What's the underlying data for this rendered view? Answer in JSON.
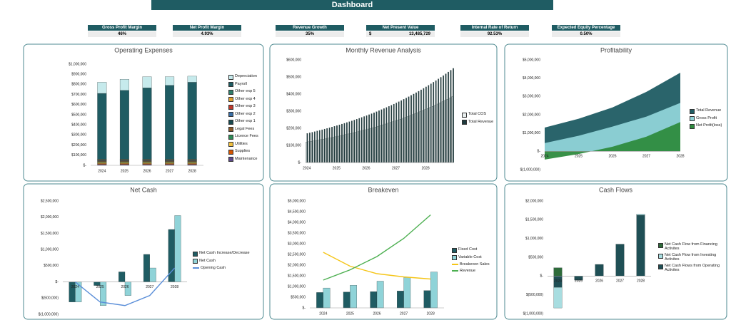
{
  "header": {
    "title": "Dashboard"
  },
  "kpis": [
    {
      "label": "Gross Profit Margin",
      "value": "46%"
    },
    {
      "label": "Net Profit Margin",
      "value": "4.93%"
    },
    {
      "label": "Revenue Growth",
      "value": "35%"
    },
    {
      "label": "Net Present Value",
      "prefix": "$",
      "value": "13,485,729"
    },
    {
      "label": "Internal Rate of Return",
      "value": "92.53%"
    },
    {
      "label": "Expected Equity Percentage",
      "value": "0.50%"
    }
  ],
  "chart_data": [
    {
      "type": "stacked_bar",
      "title": "Operating Expenses",
      "categories": [
        "2024",
        "2025",
        "2026",
        "2027",
        "2028"
      ],
      "ylim": [
        0,
        1000000
      ],
      "yticks": [
        {
          "value": 0,
          "label": "$-"
        },
        {
          "value": 100000,
          "label": "$100,000"
        },
        {
          "value": 200000,
          "label": "$200,000"
        },
        {
          "value": 300000,
          "label": "$300,000"
        },
        {
          "value": 400000,
          "label": "$400,000"
        },
        {
          "value": 500000,
          "label": "$500,000"
        },
        {
          "value": 600000,
          "label": "$600,000"
        },
        {
          "value": 700000,
          "label": "$700,000"
        },
        {
          "value": 800000,
          "label": "$800,000"
        },
        {
          "value": 900000,
          "label": "$900,000"
        },
        {
          "value": 1000000,
          "label": "$1,000,000"
        }
      ],
      "series": [
        {
          "name": "Depreciation",
          "color": "#c6eaec",
          "values": [
            110000,
            110000,
            110000,
            85000,
            60000
          ]
        },
        {
          "name": "Payroll",
          "color": "#1f5c63",
          "values": [
            650000,
            680000,
            705000,
            730000,
            760000
          ]
        },
        {
          "name": "Other exp 5",
          "color": "#2e7d6b",
          "values": [
            4000,
            4000,
            4000,
            4000,
            4000
          ]
        },
        {
          "name": "Other exp 4",
          "color": "#e0a030",
          "values": [
            4000,
            4000,
            4000,
            4000,
            4000
          ]
        },
        {
          "name": "Other exp 3",
          "color": "#c0392b",
          "values": [
            4000,
            4000,
            4000,
            4000,
            4000
          ]
        },
        {
          "name": "Other exp 2",
          "color": "#3a6ea5",
          "values": [
            4000,
            4000,
            4000,
            4000,
            4000
          ]
        },
        {
          "name": "Other exp 1",
          "color": "#17494f",
          "values": [
            4000,
            4000,
            4000,
            4000,
            4000
          ]
        },
        {
          "name": "Legal Fees",
          "color": "#8a5a2b",
          "values": [
            8000,
            8000,
            8000,
            8000,
            8000
          ]
        },
        {
          "name": "Licence Fees",
          "color": "#2e8b57",
          "values": [
            5000,
            5000,
            5000,
            5000,
            5000
          ]
        },
        {
          "name": "Utilities",
          "color": "#f0c040",
          "values": [
            10000,
            10000,
            10000,
            10000,
            10000
          ]
        },
        {
          "name": "Supplies",
          "color": "#d35400",
          "values": [
            8000,
            8000,
            8000,
            8000,
            8000
          ]
        },
        {
          "name": "Maintenance",
          "color": "#5d4a8a",
          "values": [
            10000,
            10000,
            10000,
            10000,
            10000
          ]
        }
      ]
    },
    {
      "type": "bar",
      "title": "Monthly Revenue Analysis",
      "categories": [
        "2024",
        null,
        null,
        null,
        null,
        null,
        null,
        null,
        null,
        null,
        null,
        null,
        "2025",
        null,
        null,
        null,
        null,
        null,
        null,
        null,
        null,
        null,
        null,
        null,
        "2026",
        null,
        null,
        null,
        null,
        null,
        null,
        null,
        null,
        null,
        null,
        null,
        "2027",
        null,
        null,
        null,
        null,
        null,
        null,
        null,
        null,
        null,
        null,
        null,
        "2028",
        null,
        null,
        null,
        null,
        null,
        null,
        null,
        null,
        null,
        null,
        null
      ],
      "ylim": [
        0,
        600000
      ],
      "yticks": [
        {
          "value": 0,
          "label": "$-"
        },
        {
          "value": 100000,
          "label": "$100,000"
        },
        {
          "value": 200000,
          "label": "$200,000"
        },
        {
          "value": 300000,
          "label": "$300,000"
        },
        {
          "value": 400000,
          "label": "$400,000"
        },
        {
          "value": 500000,
          "label": "$500,000"
        },
        {
          "value": 600000,
          "label": "$600,000"
        }
      ],
      "series": [
        {
          "name": "Total COS",
          "color": "#e8eeee",
          "values": [
            119000,
            121400,
            123800,
            126400,
            128900,
            131500,
            134100,
            136900,
            139600,
            142400,
            145300,
            148200,
            151100,
            154200,
            157300,
            160400,
            163700,
            167000,
            170300,
            173700,
            177200,
            180800,
            184500,
            188200,
            191900,
            195800,
            199700,
            203800,
            207800,
            212000,
            216300,
            220600,
            225100,
            229600,
            234200,
            238900,
            243700,
            248600,
            253600,
            258700,
            263900,
            269200,
            274600,
            280100,
            285800,
            291600,
            297400,
            303400,
            309500,
            315700,
            322100,
            328500,
            335200,
            341900,
            348700,
            355700,
            363000,
            370200,
            377700,
            385300
          ]
        },
        {
          "name": "Total Revenue",
          "color": "#1f3b3e",
          "values": [
            170000,
            173400,
            176900,
            180500,
            184100,
            187800,
            191600,
            195500,
            199400,
            203400,
            207500,
            211700,
            215900,
            220300,
            224700,
            229200,
            233800,
            238500,
            243300,
            248200,
            253200,
            258300,
            263500,
            268800,
            274200,
            279700,
            285300,
            291100,
            296900,
            302900,
            309000,
            315200,
            321500,
            328000,
            334600,
            341300,
            348200,
            355200,
            362300,
            369600,
            377000,
            384600,
            392300,
            400200,
            408300,
            416500,
            424900,
            433400,
            442100,
            451000,
            460100,
            469300,
            478800,
            488400,
            498200,
            508200,
            518500,
            528900,
            539500,
            550400
          ]
        }
      ]
    },
    {
      "type": "area",
      "title": "Profitability",
      "categories": [
        "2024",
        "2025",
        "2026",
        "2027",
        "2028"
      ],
      "ylim": [
        -1000000,
        5000000
      ],
      "yticks": [
        {
          "value": -1000000,
          "label": "$(1,000,000)"
        },
        {
          "value": 0,
          "label": "$-"
        },
        {
          "value": 1000000,
          "label": "$1,000,000"
        },
        {
          "value": 2000000,
          "label": "$2,000,000"
        },
        {
          "value": 3000000,
          "label": "$3,000,000"
        },
        {
          "value": 4000000,
          "label": "$4,000,000"
        },
        {
          "value": 5000000,
          "label": "$5,000,000"
        }
      ],
      "series": [
        {
          "name": "Total Revenue",
          "color": "#1f5c63",
          "values": [
            1300000,
            1780000,
            2400000,
            3250000,
            4300000
          ]
        },
        {
          "name": "Gross Profit",
          "color": "#8fd3d8",
          "values": [
            450000,
            850000,
            1350000,
            1900000,
            2650000
          ]
        },
        {
          "name": "Net Profit(loss)",
          "color": "#2e8b3e",
          "values": [
            -450000,
            -150000,
            250000,
            800000,
            1600000
          ]
        }
      ]
    },
    {
      "type": "combo",
      "title": "Net Cash",
      "categories": [
        "2024",
        "2025",
        "2026",
        "2027",
        "2028"
      ],
      "ylim": [
        -1000000,
        2500000
      ],
      "yticks": [
        {
          "value": -1000000,
          "label": "$(1,000,000)"
        },
        {
          "value": -500000,
          "label": "$(500,000)"
        },
        {
          "value": 0,
          "label": "$-"
        },
        {
          "value": 500000,
          "label": "$500,000"
        },
        {
          "value": 1000000,
          "label": "$1,000,000"
        },
        {
          "value": 1500000,
          "label": "$1,500,000"
        },
        {
          "value": 2000000,
          "label": "$2,000,000"
        },
        {
          "value": 2500000,
          "label": "$2,500,000"
        }
      ],
      "series": [
        {
          "name": "Net Cash Increase/Decrease",
          "kind": "bar",
          "color": "#1f5c63",
          "values": [
            -620000,
            -110000,
            310000,
            850000,
            1620000
          ]
        },
        {
          "name": "Net Cash",
          "kind": "bar",
          "color": "#8fd3d8",
          "values": [
            -620000,
            -730000,
            -420000,
            430000,
            2050000
          ]
        },
        {
          "name": "Opening Cash",
          "kind": "line",
          "color": "#5b8fd9",
          "values": [
            0,
            -620000,
            -730000,
            -420000,
            430000
          ]
        }
      ]
    },
    {
      "type": "combo",
      "title": "Breakeven",
      "categories": [
        "2024",
        "2025",
        "2026",
        "2027",
        "2028"
      ],
      "ylim": [
        0,
        5000000
      ],
      "yticks": [
        {
          "value": 0,
          "label": "$-"
        },
        {
          "value": 500000,
          "label": "$500,000"
        },
        {
          "value": 1000000,
          "label": "$1,000,000"
        },
        {
          "value": 1500000,
          "label": "$1,500,000"
        },
        {
          "value": 2000000,
          "label": "$2,000,000"
        },
        {
          "value": 2500000,
          "label": "$2,500,000"
        },
        {
          "value": 3000000,
          "label": "$3,000,000"
        },
        {
          "value": 3500000,
          "label": "$3,500,000"
        },
        {
          "value": 4000000,
          "label": "$4,000,000"
        },
        {
          "value": 4500000,
          "label": "$4,500,000"
        },
        {
          "value": 5000000,
          "label": "$5,000,000"
        }
      ],
      "series": [
        {
          "name": "Fixed Cost",
          "kind": "bar",
          "color": "#1f5c63",
          "values": [
            720000,
            740000,
            760000,
            790000,
            810000
          ]
        },
        {
          "name": "Variable Cost",
          "kind": "bar",
          "color": "#8fd3d8",
          "values": [
            930000,
            1060000,
            1250000,
            1420000,
            1680000
          ]
        },
        {
          "name": "Breakeven Sales",
          "kind": "line",
          "color": "#f5c518",
          "values": [
            2600000,
            1950000,
            1600000,
            1450000,
            1350000
          ]
        },
        {
          "name": "Revenue",
          "kind": "line",
          "color": "#4caf50",
          "values": [
            1300000,
            1780000,
            2400000,
            3250000,
            4350000
          ]
        }
      ]
    },
    {
      "type": "stacked_bar",
      "title": "Cash Flows",
      "categories": [
        "2024",
        "2025",
        "2026",
        "2027",
        "2028"
      ],
      "ylim": [
        -1000000,
        2000000
      ],
      "yticks": [
        {
          "value": -1000000,
          "label": "$(1,000,000)"
        },
        {
          "value": -500000,
          "label": "$(500,000)"
        },
        {
          "value": 0,
          "label": "$-"
        },
        {
          "value": 500000,
          "label": "$500,000"
        },
        {
          "value": 1000000,
          "label": "$1,000,000"
        },
        {
          "value": 1500000,
          "label": "$1,500,000"
        },
        {
          "value": 2000000,
          "label": "$2,000,000"
        }
      ],
      "series": [
        {
          "name": "Net Cash Flow from Financing Activites",
          "color": "#2e6b3a",
          "values": [
            220000,
            0,
            0,
            0,
            0
          ]
        },
        {
          "name": "Net Cash Flow from Investing Activites",
          "color": "#a8dde0",
          "values": [
            -550000,
            0,
            0,
            0,
            30000
          ]
        },
        {
          "name": "Net Cash Flows from Operating Activites",
          "color": "#1f4f55",
          "values": [
            -300000,
            -110000,
            310000,
            850000,
            1620000
          ]
        }
      ]
    }
  ]
}
